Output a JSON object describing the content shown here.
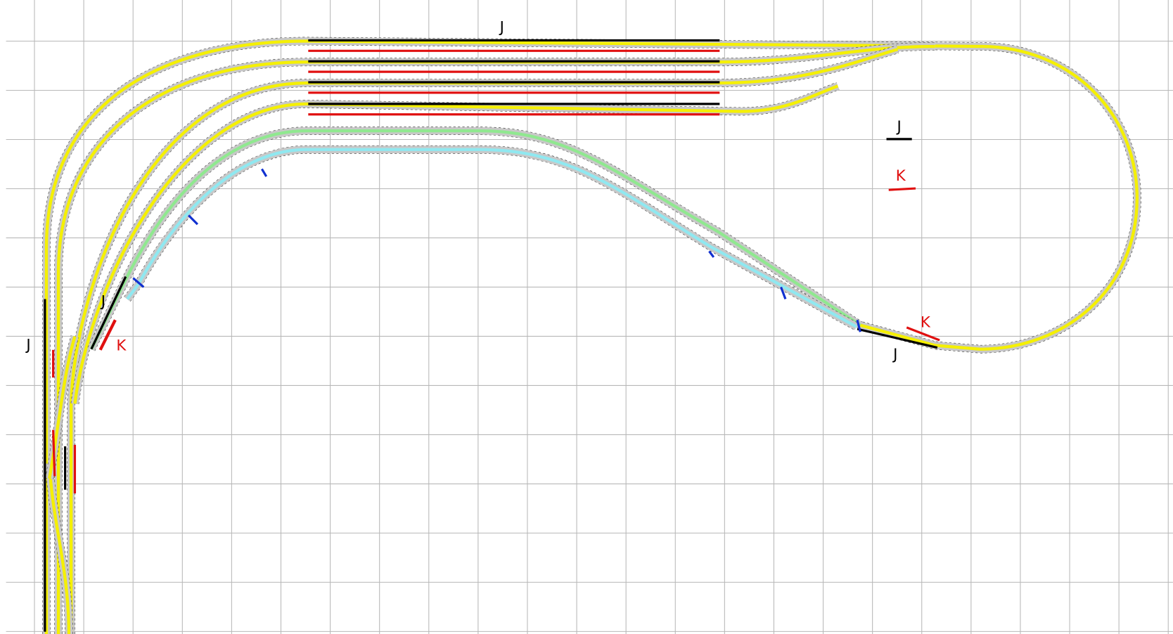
{
  "labels": [
    {
      "text": "J"
    },
    {
      "text": "J"
    },
    {
      "text": "K"
    },
    {
      "text": "J"
    },
    {
      "text": "K"
    },
    {
      "text": "J"
    },
    {
      "text": "K"
    },
    {
      "text": "J"
    }
  ]
}
